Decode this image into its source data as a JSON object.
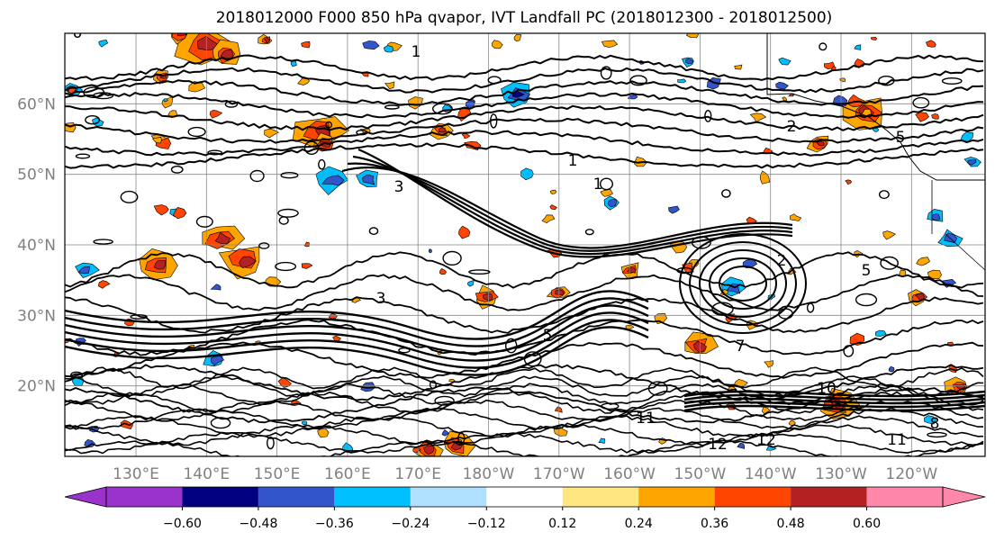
{
  "chart_data": {
    "type": "heatmap",
    "title": "2018012000 F000 850 hPa qvapor, IVT Landfall PC (2018012300 - 2018012500)",
    "projection": "cylindrical lat-lon map of the North Pacific",
    "lon_ticks": [
      "130°E",
      "140°E",
      "150°E",
      "160°E",
      "170°E",
      "180°W",
      "170°W",
      "160°W",
      "150°W",
      "140°W",
      "130°W",
      "120°W"
    ],
    "lat_ticks": [
      "20°N",
      "30°N",
      "40°N",
      "50°N",
      "60°N"
    ],
    "lat_values": [
      20,
      30,
      40,
      50,
      60
    ],
    "lat_range": [
      10,
      70
    ],
    "gridlines": true,
    "contour_labels": [
      "0",
      "1",
      "1",
      "1",
      "2",
      "2",
      "3",
      "3",
      "5",
      "5",
      "5",
      "7",
      "8",
      "10",
      "11",
      "11",
      "12",
      "12"
    ],
    "colorbar": {
      "orientation": "horizontal",
      "extend": "both",
      "tick_labels": [
        "−0.60",
        "−0.48",
        "−0.36",
        "−0.24",
        "−0.12",
        "0.12",
        "0.24",
        "0.36",
        "0.48",
        "0.60"
      ],
      "bounds": [
        -0.6,
        -0.48,
        -0.36,
        -0.24,
        -0.12,
        0.12,
        0.24,
        0.36,
        0.48,
        0.6
      ],
      "colors": [
        "#9933cc",
        "#000080",
        "#3355cc",
        "#00bfff",
        "#b0e0ff",
        "#ffffff",
        "#ffe680",
        "#ffa500",
        "#ff4500",
        "#b22222",
        "#ff88aa"
      ]
    }
  }
}
